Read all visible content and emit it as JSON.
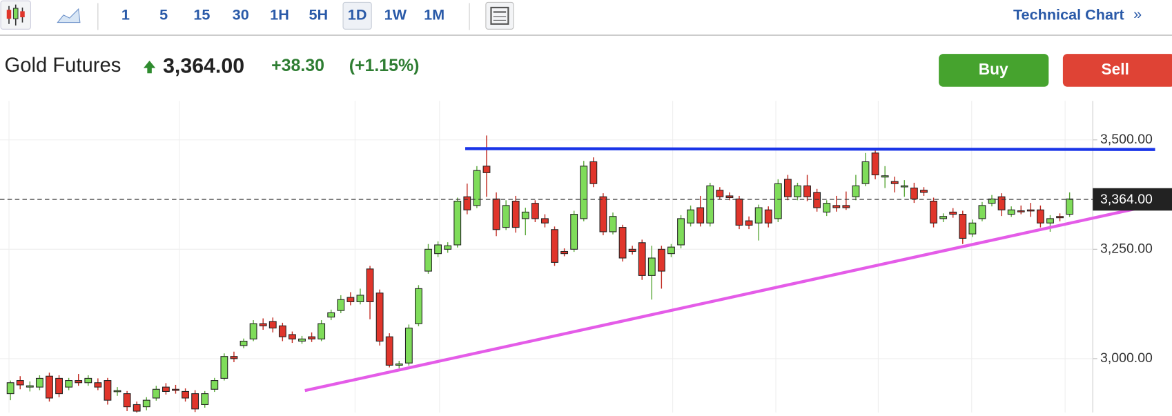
{
  "toolbar": {
    "intervals": [
      "1",
      "5",
      "15",
      "30",
      "1H",
      "5H",
      "1D",
      "1W",
      "1M"
    ],
    "selected": "1D",
    "link": "Technical Chart",
    "link_icon": "»"
  },
  "header": {
    "name": "Gold Futures",
    "change": "+38.30",
    "change_pct": "(+1.15%)"
  },
  "buttons": {
    "buy": "Buy",
    "sell": "Sell"
  },
  "chart_data": {
    "type": "candlestick",
    "ylim": [
      2877,
      3589
    ],
    "yticks": [
      {
        "value": 3000,
        "label": "3,000.00"
      },
      {
        "value": 3250,
        "label": "3,250.00"
      },
      {
        "value": 3500,
        "label": "3,500.00"
      }
    ],
    "grid": true,
    "up_color": "#7fdc5a",
    "down_color": "#e0352b",
    "last_price": {
      "value": 3364,
      "label": "3,364.00"
    },
    "trendlines": [
      {
        "color": "#1a35e8",
        "start": [
          46.8,
          3480
        ],
        "end": [
          117.8,
          3478
        ]
      },
      {
        "color": "#e45ce8",
        "start": [
          30.3,
          2927
        ],
        "end": [
          116.5,
          3346
        ]
      }
    ],
    "candles": [
      [
        2920,
        2950,
        2905,
        2945
      ],
      [
        2950,
        2960,
        2930,
        2940
      ],
      [
        2935,
        2948,
        2925,
        2938
      ],
      [
        2935,
        2962,
        2928,
        2955
      ],
      [
        2960,
        2968,
        2902,
        2910
      ],
      [
        2955,
        2962,
        2912,
        2920
      ],
      [
        2935,
        2956,
        2928,
        2950
      ],
      [
        2950,
        2965,
        2938,
        2945
      ],
      [
        2945,
        2962,
        2938,
        2955
      ],
      [
        2945,
        2955,
        2928,
        2935
      ],
      [
        2950,
        2956,
        2895,
        2905
      ],
      [
        2925,
        2935,
        2915,
        2927
      ],
      [
        2920,
        2926,
        2880,
        2890
      ],
      [
        2895,
        2902,
        2872,
        2880
      ],
      [
        2890,
        2912,
        2882,
        2905
      ],
      [
        2910,
        2938,
        2904,
        2930
      ],
      [
        2935,
        2944,
        2918,
        2925
      ],
      [
        2930,
        2940,
        2920,
        2928
      ],
      [
        2925,
        2932,
        2902,
        2910
      ],
      [
        2920,
        2928,
        2878,
        2885
      ],
      [
        2895,
        2926,
        2888,
        2920
      ],
      [
        2930,
        2956,
        2924,
        2950
      ],
      [
        2955,
        3012,
        2950,
        3005
      ],
      [
        3005,
        3016,
        2992,
        3000
      ],
      [
        3030,
        3046,
        3024,
        3040
      ],
      [
        3045,
        3088,
        3040,
        3080
      ],
      [
        3080,
        3092,
        3066,
        3075
      ],
      [
        3085,
        3094,
        3060,
        3070
      ],
      [
        3075,
        3082,
        3040,
        3050
      ],
      [
        3055,
        3062,
        3036,
        3045
      ],
      [
        3040,
        3052,
        3034,
        3045
      ],
      [
        3050,
        3060,
        3038,
        3045
      ],
      [
        3045,
        3088,
        3040,
        3080
      ],
      [
        3095,
        3112,
        3088,
        3105
      ],
      [
        3110,
        3145,
        3104,
        3135
      ],
      [
        3140,
        3152,
        3122,
        3130
      ],
      [
        3130,
        3160,
        3124,
        3145
      ],
      [
        3205,
        3212,
        3090,
        3130
      ],
      [
        3150,
        3158,
        3030,
        3040
      ],
      [
        3050,
        3058,
        2980,
        2985
      ],
      [
        2985,
        2995,
        2978,
        2988
      ],
      [
        2990,
        3078,
        2984,
        3070
      ],
      [
        3080,
        3168,
        3074,
        3160
      ],
      [
        3200,
        3262,
        3194,
        3250
      ],
      [
        3240,
        3268,
        3232,
        3260
      ],
      [
        3250,
        3266,
        3242,
        3258
      ],
      [
        3260,
        3368,
        3254,
        3360
      ],
      [
        3370,
        3400,
        3330,
        3340
      ],
      [
        3350,
        3440,
        3344,
        3430
      ],
      [
        3440,
        3510,
        3370,
        3425
      ],
      [
        3365,
        3380,
        3280,
        3295
      ],
      [
        3300,
        3362,
        3294,
        3350
      ],
      [
        3360,
        3372,
        3288,
        3300
      ],
      [
        3320,
        3345,
        3282,
        3335
      ],
      [
        3355,
        3362,
        3312,
        3320
      ],
      [
        3320,
        3330,
        3300,
        3310
      ],
      [
        3295,
        3302,
        3212,
        3220
      ],
      [
        3245,
        3252,
        3234,
        3240
      ],
      [
        3250,
        3338,
        3244,
        3330
      ],
      [
        3320,
        3452,
        3314,
        3440
      ],
      [
        3450,
        3460,
        3392,
        3400
      ],
      [
        3370,
        3378,
        3282,
        3290
      ],
      [
        3290,
        3334,
        3284,
        3325
      ],
      [
        3300,
        3306,
        3222,
        3230
      ],
      [
        3250,
        3258,
        3238,
        3245
      ],
      [
        3265,
        3272,
        3180,
        3190
      ],
      [
        3190,
        3258,
        3135,
        3230
      ],
      [
        3250,
        3258,
        3160,
        3200
      ],
      [
        3240,
        3262,
        3232,
        3255
      ],
      [
        3260,
        3328,
        3252,
        3320
      ],
      [
        3310,
        3350,
        3302,
        3340
      ],
      [
        3345,
        3372,
        3302,
        3310
      ],
      [
        3310,
        3402,
        3302,
        3395
      ],
      [
        3385,
        3392,
        3364,
        3370
      ],
      [
        3372,
        3380,
        3362,
        3368
      ],
      [
        3365,
        3372,
        3296,
        3305
      ],
      [
        3315,
        3325,
        3296,
        3305
      ],
      [
        3310,
        3352,
        3270,
        3345
      ],
      [
        3340,
        3348,
        3300,
        3310
      ],
      [
        3320,
        3410,
        3312,
        3400
      ],
      [
        3410,
        3420,
        3362,
        3370
      ],
      [
        3370,
        3402,
        3362,
        3395
      ],
      [
        3395,
        3420,
        3360,
        3370
      ],
      [
        3380,
        3388,
        3336,
        3345
      ],
      [
        3335,
        3362,
        3326,
        3355
      ],
      [
        3350,
        3372,
        3336,
        3345
      ],
      [
        3350,
        3382,
        3340,
        3345
      ],
      [
        3370,
        3420,
        3362,
        3395
      ],
      [
        3400,
        3470,
        3394,
        3450
      ],
      [
        3470,
        3476,
        3410,
        3420
      ],
      [
        3415,
        3440,
        3390,
        3418
      ],
      [
        3405,
        3416,
        3380,
        3400
      ],
      [
        3395,
        3408,
        3370,
        3395
      ],
      [
        3390,
        3402,
        3356,
        3365
      ],
      [
        3385,
        3392,
        3372,
        3380
      ],
      [
        3360,
        3368,
        3300,
        3310
      ],
      [
        3320,
        3332,
        3312,
        3325
      ],
      [
        3335,
        3344,
        3322,
        3330
      ],
      [
        3330,
        3338,
        3262,
        3275
      ],
      [
        3285,
        3318,
        3278,
        3310
      ],
      [
        3320,
        3358,
        3314,
        3350
      ],
      [
        3355,
        3374,
        3348,
        3365
      ],
      [
        3370,
        3378,
        3326,
        3340
      ],
      [
        3330,
        3348,
        3324,
        3340
      ],
      [
        3338,
        3350,
        3330,
        3337
      ],
      [
        3340,
        3356,
        3324,
        3338
      ],
      [
        3340,
        3350,
        3300,
        3310
      ],
      [
        3310,
        3328,
        3290,
        3320
      ],
      [
        3325,
        3332,
        3314,
        3322
      ],
      [
        3330,
        3380,
        3324,
        3365
      ]
    ]
  }
}
